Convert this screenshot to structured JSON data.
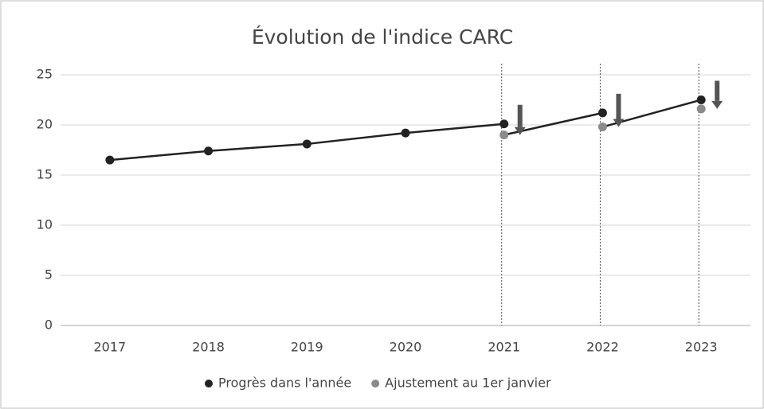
{
  "chart_data": {
    "type": "line",
    "title": "Évolution de l'indice CARC",
    "categories": [
      "2017",
      "2018",
      "2019",
      "2020",
      "2021",
      "2022",
      "2023"
    ],
    "series": [
      {
        "name": "Progrès dans l'année",
        "color": "#222222",
        "values": [
          16.5,
          17.4,
          18.1,
          19.2,
          20.1,
          21.2,
          22.5
        ]
      },
      {
        "name": "Ajustement au 1er janvier",
        "color": "#8a8a8a",
        "values": [
          null,
          null,
          null,
          null,
          19.0,
          19.8,
          21.6
        ]
      }
    ],
    "ylim": [
      0,
      25
    ],
    "yticks": [
      0,
      5,
      10,
      15,
      20,
      25
    ],
    "grid": true,
    "legend": "bottom"
  }
}
